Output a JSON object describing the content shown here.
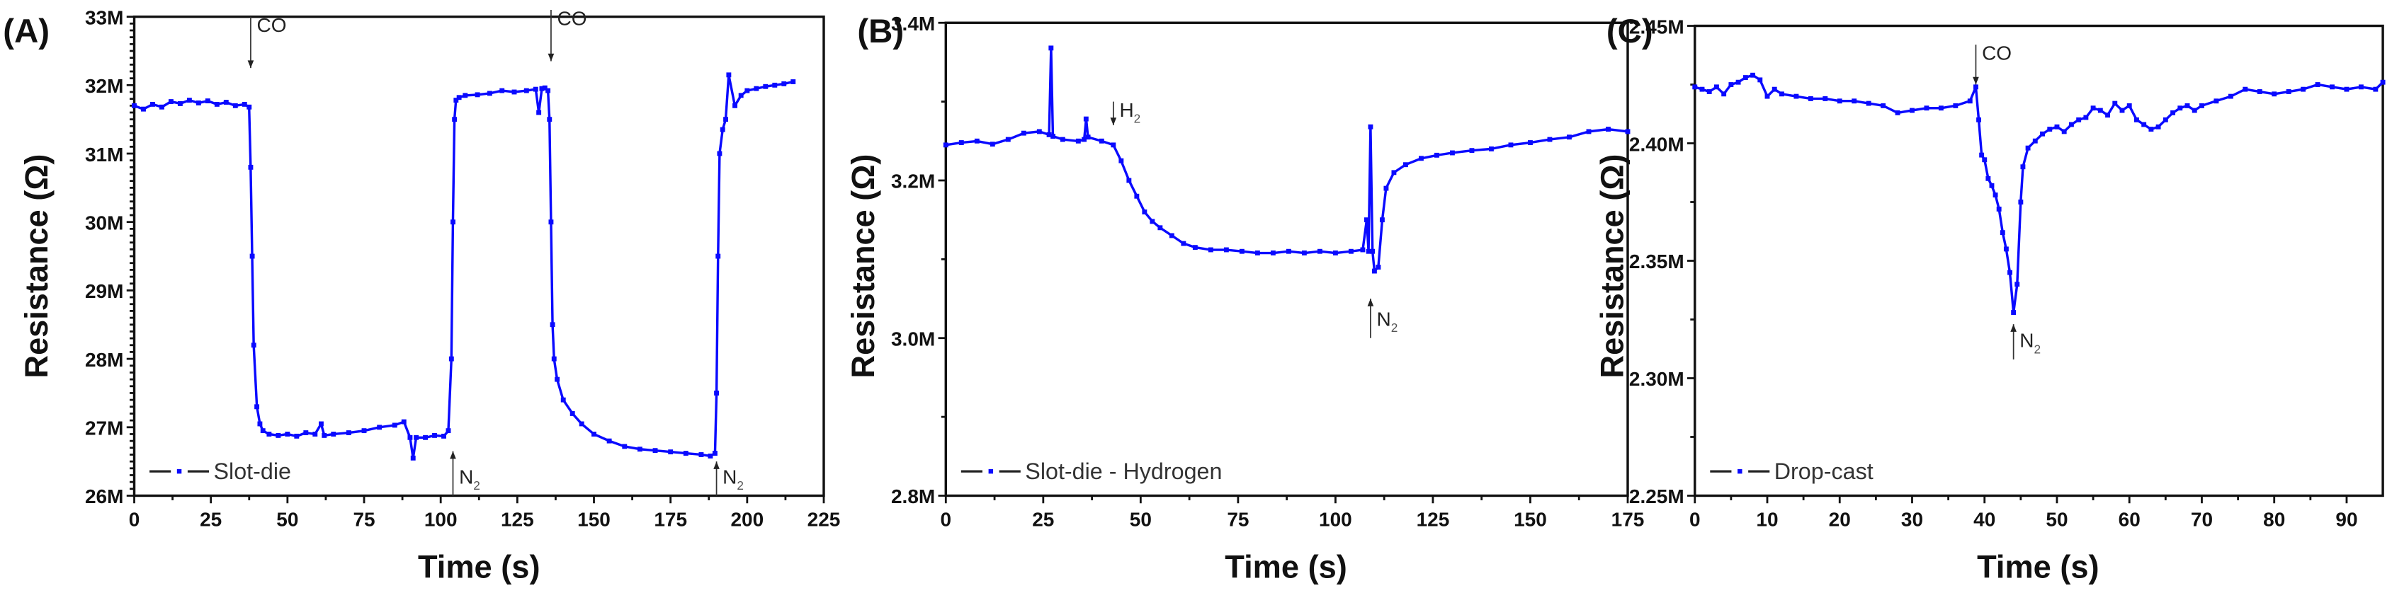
{
  "figure": {
    "panels": [
      "A",
      "B",
      "C"
    ]
  },
  "chart_data": [
    {
      "panel_label": "(A)",
      "type": "line",
      "title": "",
      "xlabel": "Time (s)",
      "ylabel": "Resistance (Ω)",
      "xlim": [
        0,
        225
      ],
      "ylim": [
        26000000,
        33000000
      ],
      "xticks": [
        0,
        25,
        50,
        75,
        100,
        125,
        150,
        175,
        200,
        225
      ],
      "xtick_labels": [
        "0",
        "25",
        "50",
        "75",
        "100",
        "125",
        "150",
        "175",
        "200",
        "225"
      ],
      "yticks": [
        26000000,
        27000000,
        28000000,
        29000000,
        30000000,
        31000000,
        32000000,
        33000000
      ],
      "ytick_labels": [
        "26M",
        "27M",
        "28M",
        "29M",
        "30M",
        "31M",
        "32M",
        "33M"
      ],
      "y_minor_per_major": 10,
      "x_minor_per_major": 2,
      "grid": false,
      "legend": {
        "position": "lower left",
        "entries": [
          "Slot-die"
        ]
      },
      "annotations": [
        {
          "text": "CO",
          "sub": "",
          "x": 38,
          "direction": "down",
          "y_from": 33000000,
          "y_to": 32250000
        },
        {
          "text": "N",
          "sub": "2",
          "x": 104,
          "direction": "up",
          "y_from": 26000000,
          "y_to": 26650000
        },
        {
          "text": "CO",
          "sub": "",
          "x": 136,
          "direction": "down",
          "y_from": 33100000,
          "y_to": 32350000
        },
        {
          "text": "N",
          "sub": "2",
          "x": 190,
          "direction": "up",
          "y_from": 26000000,
          "y_to": 26500000
        }
      ],
      "series": [
        {
          "name": "Slot-die",
          "color": "#0a0aff",
          "x": [
            0,
            3,
            6,
            9,
            12,
            15,
            18,
            21,
            24,
            27,
            30,
            33,
            36,
            37.5,
            38,
            38.5,
            39,
            40,
            41,
            42,
            44,
            47,
            50,
            53,
            56,
            59,
            61,
            62,
            65,
            70,
            75,
            80,
            85,
            88,
            90,
            91,
            92,
            95,
            98,
            101,
            102.5,
            103.5,
            104,
            104.5,
            105,
            106,
            108,
            112,
            116,
            120,
            124,
            128,
            131,
            132,
            133,
            134,
            135,
            135.5,
            136,
            136.5,
            137,
            138,
            140,
            143,
            146,
            150,
            155,
            160,
            165,
            170,
            175,
            180,
            185,
            188,
            189.5,
            190,
            190.5,
            191,
            192,
            193,
            194,
            196,
            198,
            200,
            203,
            206,
            209,
            212,
            215
          ],
          "values": [
            31700000,
            31650000,
            31720000,
            31680000,
            31760000,
            31730000,
            31780000,
            31740000,
            31770000,
            31720000,
            31750000,
            31700000,
            31720000,
            31680000,
            30800000,
            29500000,
            28200000,
            27300000,
            27050000,
            26950000,
            26900000,
            26880000,
            26900000,
            26870000,
            26920000,
            26900000,
            27050000,
            26880000,
            26900000,
            26920000,
            26950000,
            27000000,
            27030000,
            27080000,
            26850000,
            26550000,
            26850000,
            26850000,
            26880000,
            26870000,
            26950000,
            28000000,
            30000000,
            31500000,
            31780000,
            31820000,
            31850000,
            31860000,
            31880000,
            31920000,
            31900000,
            31920000,
            31940000,
            31600000,
            31950000,
            31960000,
            31920000,
            31500000,
            30000000,
            28500000,
            28000000,
            27700000,
            27400000,
            27200000,
            27050000,
            26900000,
            26800000,
            26720000,
            26680000,
            26660000,
            26640000,
            26620000,
            26600000,
            26580000,
            26620000,
            27500000,
            29500000,
            31000000,
            31350000,
            31500000,
            32150000,
            31700000,
            31850000,
            31920000,
            31950000,
            31980000,
            32000000,
            32020000,
            32050000
          ]
        }
      ]
    },
    {
      "panel_label": "(B)",
      "type": "line",
      "title": "",
      "xlabel": "Time (s)",
      "ylabel": "Resistance (Ω)",
      "xlim": [
        0,
        175
      ],
      "ylim": [
        2800000,
        3400000
      ],
      "xticks": [
        0,
        25,
        50,
        75,
        100,
        125,
        150,
        175
      ],
      "xtick_labels": [
        "0",
        "25",
        "50",
        "75",
        "100",
        "125",
        "150",
        "175"
      ],
      "yticks": [
        2800000,
        3000000,
        3200000,
        3400000
      ],
      "ytick_labels": [
        "2.8M",
        "3.0M",
        "3.2M",
        "3.4M"
      ],
      "y_minor_per_major": 2,
      "x_minor_per_major": 2,
      "grid": false,
      "legend": {
        "position": "lower left",
        "entries": [
          "Slot-die - Hydrogen"
        ]
      },
      "annotations": [
        {
          "text": "H",
          "sub": "2",
          "x": 43,
          "direction": "down",
          "y_from": 3300000,
          "y_to": 3270000
        },
        {
          "text": "N",
          "sub": "2",
          "x": 109,
          "direction": "up",
          "y_from": 3000000,
          "y_to": 3050000
        }
      ],
      "series": [
        {
          "name": "Slot-die - Hydrogen",
          "color": "#0a0aff",
          "x": [
            0,
            4,
            8,
            12,
            16,
            20,
            24,
            26.5,
            27,
            27.5,
            30,
            34,
            35.5,
            36,
            36.5,
            40,
            43,
            45,
            47,
            49,
            51,
            53,
            55,
            58,
            61,
            64,
            68,
            72,
            76,
            80,
            84,
            88,
            92,
            96,
            100,
            104,
            107,
            108,
            108.5,
            109,
            109.5,
            110,
            111,
            112,
            113,
            115,
            118,
            122,
            126,
            130,
            135,
            140,
            145,
            150,
            155,
            160,
            165,
            170,
            175
          ],
          "values": [
            3245000,
            3248000,
            3250000,
            3246000,
            3252000,
            3260000,
            3262000,
            3258000,
            3368000,
            3256000,
            3252000,
            3250000,
            3252000,
            3278000,
            3255000,
            3250000,
            3245000,
            3225000,
            3200000,
            3180000,
            3160000,
            3148000,
            3140000,
            3130000,
            3120000,
            3115000,
            3112000,
            3112000,
            3110000,
            3108000,
            3108000,
            3110000,
            3108000,
            3110000,
            3108000,
            3110000,
            3112000,
            3150000,
            3110000,
            3268000,
            3110000,
            3085000,
            3090000,
            3150000,
            3190000,
            3210000,
            3220000,
            3228000,
            3232000,
            3235000,
            3238000,
            3240000,
            3245000,
            3248000,
            3252000,
            3255000,
            3262000,
            3265000,
            3262000
          ]
        }
      ]
    },
    {
      "panel_label": "(C)",
      "type": "line",
      "title": "",
      "xlabel": "Time (s)",
      "ylabel": "Resistance (Ω)",
      "xlim": [
        0,
        95
      ],
      "ylim": [
        2250000,
        2450000
      ],
      "xticks": [
        0,
        10,
        20,
        30,
        40,
        50,
        60,
        70,
        80,
        90
      ],
      "xtick_labels": [
        "0",
        "10",
        "20",
        "30",
        "40",
        "50",
        "60",
        "70",
        "80",
        "90"
      ],
      "yticks": [
        2250000,
        2300000,
        2350000,
        2400000,
        2450000
      ],
      "ytick_labels": [
        "2.25M",
        "2.30M",
        "2.35M",
        "2.40M",
        "2.45M"
      ],
      "y_minor_per_major": 2,
      "x_minor_per_major": 2,
      "grid": false,
      "legend": {
        "position": "lower left",
        "entries": [
          "Drop-cast"
        ]
      },
      "annotations": [
        {
          "text": "CO",
          "sub": "",
          "x": 38.8,
          "direction": "down",
          "y_from": 2442000,
          "y_to": 2425000
        },
        {
          "text": "N",
          "sub": "2",
          "x": 44,
          "direction": "up",
          "y_from": 2308000,
          "y_to": 2323000
        }
      ],
      "series": [
        {
          "name": "Drop-cast",
          "color": "#0a0aff",
          "x": [
            0,
            1,
            2,
            3,
            4,
            5,
            6,
            7,
            8,
            9,
            10,
            11,
            12,
            14,
            16,
            18,
            20,
            22,
            24,
            26,
            28,
            30,
            32,
            34,
            36,
            38,
            38.8,
            39.2,
            39.6,
            40,
            40.5,
            41,
            41.5,
            42,
            42.5,
            43,
            43.5,
            44,
            44.5,
            45,
            45.3,
            46,
            47,
            48,
            49,
            50,
            51,
            52,
            53,
            54,
            55,
            56,
            57,
            58,
            59,
            60,
            61,
            62,
            63,
            64,
            65,
            66,
            67,
            68,
            69,
            70,
            72,
            74,
            76,
            78,
            80,
            82,
            84,
            86,
            88,
            90,
            92,
            94,
            95
          ],
          "values": [
            2424000,
            2423000,
            2422000,
            2424000,
            2421000,
            2425000,
            2426000,
            2428000,
            2429000,
            2427000,
            2420000,
            2423000,
            2421000,
            2420000,
            2419000,
            2419000,
            2418000,
            2418000,
            2417000,
            2416000,
            2413000,
            2414000,
            2415000,
            2415000,
            2416000,
            2418000,
            2424000,
            2410000,
            2395000,
            2393000,
            2385000,
            2382000,
            2378000,
            2372000,
            2362000,
            2355000,
            2345000,
            2328000,
            2340000,
            2375000,
            2390000,
            2398000,
            2401000,
            2404000,
            2406000,
            2407000,
            2405000,
            2408000,
            2410000,
            2411000,
            2415000,
            2414000,
            2412000,
            2417000,
            2414000,
            2416000,
            2410000,
            2408000,
            2406000,
            2407000,
            2410000,
            2413000,
            2415000,
            2416000,
            2414000,
            2416000,
            2418000,
            2420000,
            2423000,
            2422000,
            2421000,
            2422000,
            2423000,
            2425000,
            2424000,
            2423000,
            2424000,
            2423000,
            2426000
          ]
        }
      ]
    }
  ]
}
